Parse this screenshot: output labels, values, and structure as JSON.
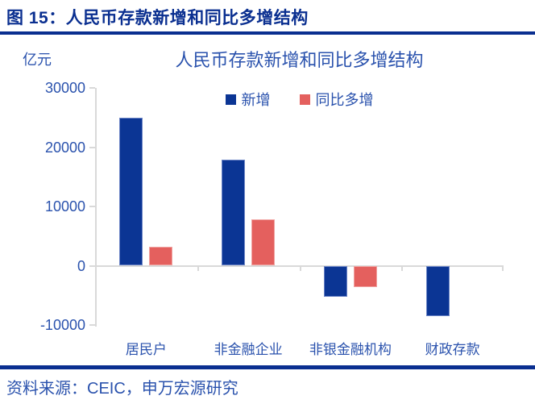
{
  "figure": {
    "header": "图 15：人民币存款新增和同比多增结构",
    "source": "资料来源：CEIC，申万宏源研究"
  },
  "chart_data": {
    "type": "bar",
    "title": "人民币存款新增和同比多增结构",
    "unit_label": "亿元",
    "categories": [
      "居民户",
      "非金融企业",
      "非银金融机构",
      "财政存款"
    ],
    "series": [
      {
        "name": "新增",
        "color": "#0B3594",
        "values": [
          24900,
          17900,
          -5300,
          -8500
        ]
      },
      {
        "name": "同比多增",
        "color": "#E4605E",
        "values": [
          3200,
          7800,
          -3600,
          0
        ]
      }
    ],
    "ylim": [
      -10000,
      30000
    ],
    "yticks": [
      30000,
      20000,
      10000,
      0,
      -10000
    ],
    "grid": false,
    "legend_position": "top-center"
  },
  "colors": {
    "header_navy": "#0A2F90",
    "chart_text_blue": "#2A52AD",
    "axis_line": "#D9D9D9",
    "bar_blue": "#0B3594",
    "bar_red": "#E4605E"
  }
}
